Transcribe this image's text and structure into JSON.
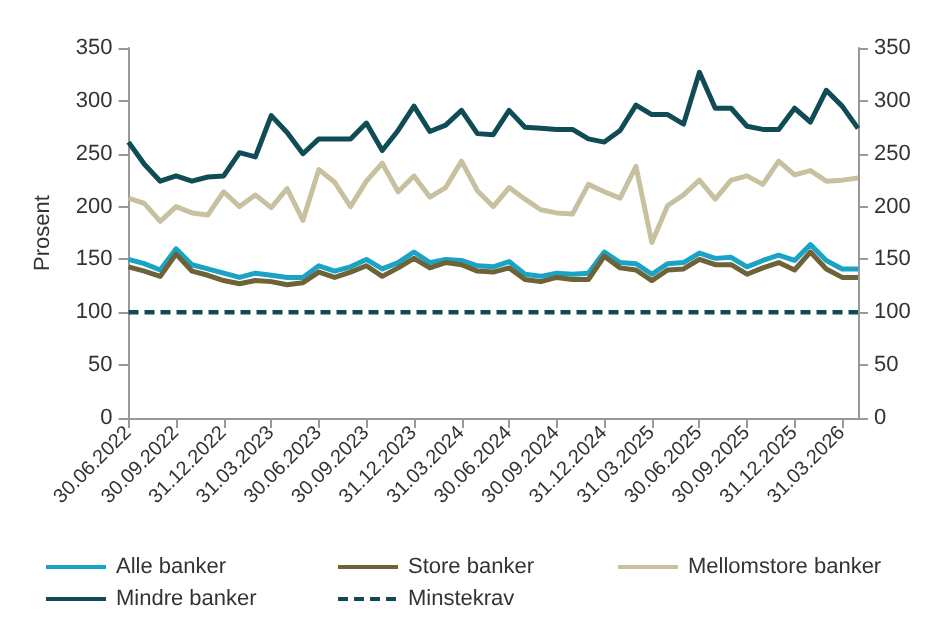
{
  "chart_data": {
    "type": "line",
    "ylabel": "Prosent",
    "categories": [
      "30.06.2022",
      null,
      null,
      "30.09.2022",
      null,
      null,
      "31.12.2022",
      null,
      null,
      "31.03.2023",
      null,
      null,
      "30.06.2023",
      null,
      null,
      "30.09.2023",
      null,
      null,
      "31.12.2023",
      null,
      null,
      "31.03.2024",
      null,
      null,
      "30.06.2024",
      null,
      null,
      "30.09.2024",
      null,
      null,
      "31.12.2024",
      null,
      null,
      "31.03.2025",
      null,
      null,
      "30.06.2025",
      null,
      null,
      "30.09.2025",
      null,
      null,
      "31.12.2025",
      null,
      null,
      "31.03.2026",
      null
    ],
    "series": [
      {
        "name": "Alle banker",
        "color": "#1ba3c6",
        "values": [
          150,
          146,
          140,
          160,
          145,
          141,
          137,
          133,
          137,
          135,
          133,
          133,
          144,
          139,
          143,
          150,
          141,
          147,
          157,
          147,
          150,
          149,
          144,
          143,
          148,
          136,
          134,
          137,
          136,
          137,
          157,
          147,
          146,
          136,
          146,
          147,
          156,
          151,
          152,
          143,
          149,
          154,
          149,
          164,
          149,
          141,
          141
        ]
      },
      {
        "name": "Store banker",
        "color": "#6e6237",
        "values": [
          143,
          139,
          134,
          155,
          139,
          135,
          130,
          127,
          130,
          129,
          126,
          128,
          138,
          133,
          138,
          144,
          134,
          142,
          151,
          142,
          147,
          145,
          139,
          138,
          142,
          131,
          129,
          133,
          131,
          131,
          153,
          142,
          140,
          130,
          140,
          141,
          150,
          145,
          145,
          136,
          142,
          147,
          140,
          157,
          141,
          133,
          133
        ]
      },
      {
        "name": "Mellomstore banker",
        "color": "#c8c1a0",
        "values": [
          208,
          203,
          186,
          200,
          194,
          192,
          214,
          200,
          211,
          199,
          217,
          187,
          235,
          223,
          200,
          224,
          241,
          214,
          229,
          209,
          218,
          243,
          215,
          200,
          218,
          207,
          197,
          194,
          193,
          221,
          214,
          208,
          238,
          166,
          201,
          211,
          225,
          207,
          225,
          229,
          221,
          243,
          230,
          234,
          224,
          225,
          227
        ]
      },
      {
        "name": "Mindre banker",
        "color": "#0f4c55",
        "values": [
          261,
          240,
          224,
          229,
          224,
          228,
          229,
          251,
          247,
          286,
          270,
          250,
          264,
          264,
          264,
          279,
          253,
          272,
          295,
          271,
          277,
          291,
          269,
          268,
          291,
          275,
          274,
          273,
          273,
          264,
          261,
          272,
          296,
          287,
          287,
          278,
          327,
          293,
          293,
          276,
          273,
          273,
          293,
          280,
          310,
          295,
          274
        ]
      },
      {
        "name": "Minstekrav",
        "color": "#0f4c55",
        "line_style": "dashed",
        "values": [
          100,
          100,
          100,
          100,
          100,
          100,
          100,
          100,
          100,
          100,
          100,
          100,
          100,
          100,
          100,
          100,
          100,
          100,
          100,
          100,
          100,
          100,
          100,
          100,
          100,
          100,
          100,
          100,
          100,
          100,
          100,
          100,
          100,
          100,
          100,
          100,
          100,
          100,
          100,
          100,
          100,
          100,
          100,
          100,
          100,
          100,
          100
        ]
      }
    ],
    "ylim": [
      0,
      350
    ],
    "yticks": [
      0,
      50,
      100,
      150,
      200,
      250,
      300,
      350
    ],
    "y2lim": [
      0,
      350
    ],
    "y2ticks": [
      0,
      50,
      100,
      150,
      200,
      250,
      300,
      350
    ],
    "grid": false,
    "legend": "bottom",
    "marker": "none"
  }
}
